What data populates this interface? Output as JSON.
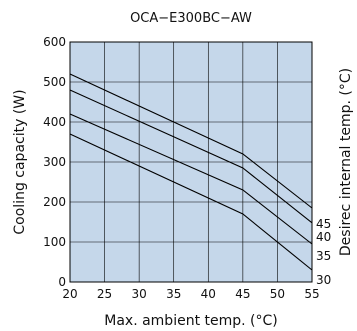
{
  "chart_data": {
    "type": "line",
    "title": "OCA−E300BC−AW",
    "xlabel": "Max. ambient temp. (°C)",
    "ylabel": "Cooling capacity (W)",
    "y2label": "Desirec internal temp. (°C)",
    "xlim": [
      20,
      55
    ],
    "ylim": [
      0,
      600
    ],
    "xticks": [
      20,
      25,
      30,
      35,
      40,
      45,
      50,
      55
    ],
    "yticks": [
      0,
      100,
      200,
      300,
      400,
      500,
      600
    ],
    "grid": true,
    "plot_background": "#c5d7ea",
    "line_color": "#000000",
    "series": [
      {
        "name": "45",
        "x": [
          20,
          45,
          55
        ],
        "y": [
          520,
          320,
          185
        ]
      },
      {
        "name": "40",
        "x": [
          20,
          45,
          55
        ],
        "y": [
          480,
          285,
          148
        ]
      },
      {
        "name": "35",
        "x": [
          20,
          45,
          55
        ],
        "y": [
          420,
          230,
          95
        ]
      },
      {
        "name": "30",
        "x": [
          20,
          45,
          55
        ],
        "y": [
          370,
          170,
          30
        ]
      }
    ]
  }
}
